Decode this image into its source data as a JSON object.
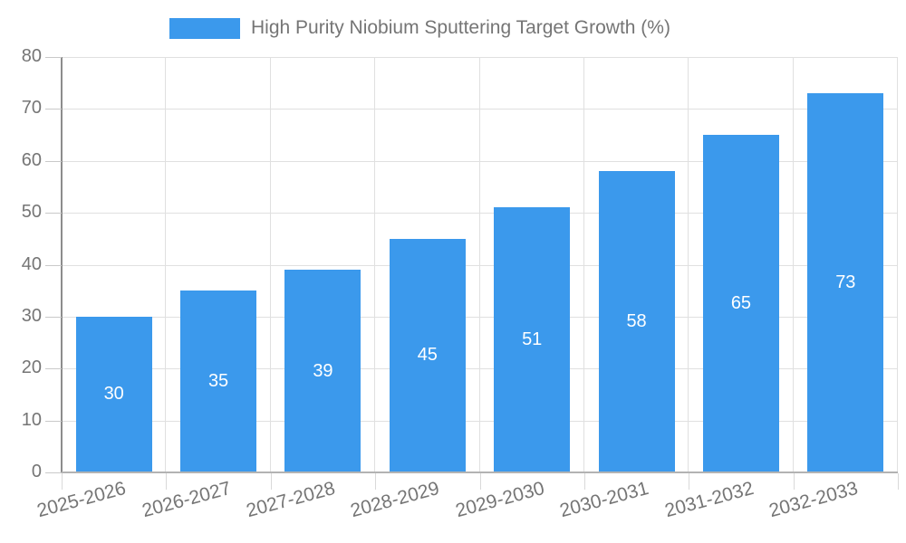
{
  "chart_data": {
    "type": "bar",
    "title": "High Purity Niobium Sputtering Target Growth (%)",
    "categories": [
      "2025-2026",
      "2026-2027",
      "2027-2028",
      "2028-2029",
      "2029-2030",
      "2030-2031",
      "2031-2032",
      "2032-2033"
    ],
    "values": [
      30,
      35,
      39,
      45,
      51,
      58,
      65,
      73
    ],
    "xlabel": "",
    "ylabel": "",
    "ylim": [
      0,
      80
    ],
    "yticks": [
      0,
      10,
      20,
      30,
      40,
      50,
      60,
      70,
      80
    ],
    "grid": true,
    "legend_position": "top",
    "value_label_position": "inside-center",
    "x_label_rotation_deg": -15,
    "colors": {
      "bar": "#3B99EC",
      "value_label": "#FFFFFF",
      "axis_text": "#757575",
      "grid_line": "#E0E0E0",
      "x_axis_line": "#B3B3B3",
      "y_axis_line": "#8C8C8C"
    }
  }
}
